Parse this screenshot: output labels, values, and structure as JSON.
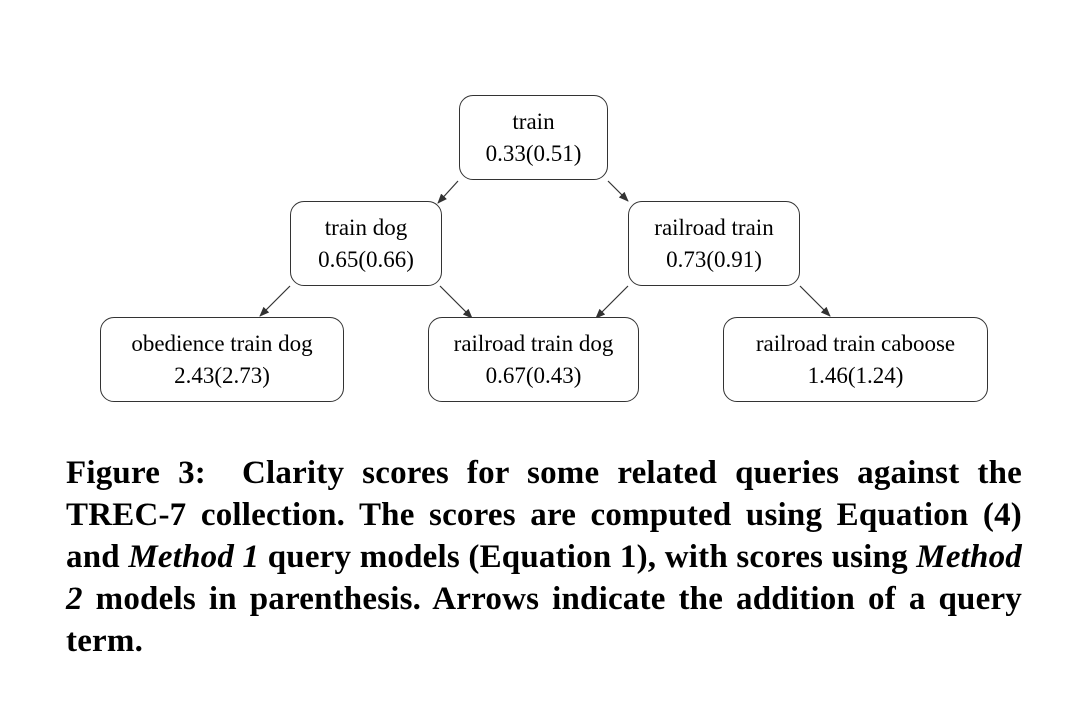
{
  "diagram": {
    "nodes": [
      {
        "id": "train",
        "label": "train",
        "score": "0.33(0.51)"
      },
      {
        "id": "train-dog",
        "label": "train dog",
        "score": "0.65(0.66)"
      },
      {
        "id": "railroad-train",
        "label": "railroad train",
        "score": "0.73(0.91)"
      },
      {
        "id": "obedience-train-dog",
        "label": "obedience train dog",
        "score": "2.43(2.73)"
      },
      {
        "id": "railroad-train-dog",
        "label": "railroad train dog",
        "score": "0.67(0.43)"
      },
      {
        "id": "railroad-train-caboose",
        "label": "railroad train caboose",
        "score": "1.46(1.24)"
      }
    ],
    "edges": [
      {
        "from": "train",
        "to": "train-dog"
      },
      {
        "from": "train",
        "to": "railroad-train"
      },
      {
        "from": "train-dog",
        "to": "obedience-train-dog"
      },
      {
        "from": "train-dog",
        "to": "railroad-train-dog"
      },
      {
        "from": "railroad-train",
        "to": "railroad-train-dog"
      },
      {
        "from": "railroad-train",
        "to": "railroad-train-caboose"
      }
    ]
  },
  "caption": {
    "prefix": "Figure 3:",
    "part1": "Clarity scores for some related queries against the TREC-7 collection. The scores are computed using Equation (4) and",
    "method1": "Method 1",
    "part2": "query models (Equation 1), with scores using",
    "method2": "Method 2",
    "part3": "models in parenthesis. Arrows indicate the addition of a query term."
  }
}
